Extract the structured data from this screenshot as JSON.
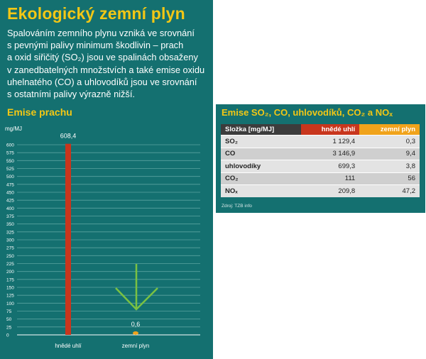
{
  "title": "Ekologický zemní plyn",
  "intro_lines": [
    "Spalováním zemního plynu vzniká ve srovnání",
    "s pevnými palivy minimum škodlivin – prach",
    "a oxid siřičitý (SO₂) jsou ve spalinách obsaženy",
    "v zanedbatelných množstvích a také emise oxidu",
    "uhelnatého (CO) a uhlovodíků jsou ve srovnání",
    "s ostatními palivy výrazně nižší."
  ],
  "colors": {
    "panel": "#147070",
    "accent": "#f3c715",
    "coal": "#c8361d",
    "gas": "#f0a31b",
    "arrow": "#7ac142"
  },
  "chart_data": {
    "type": "bar",
    "title": "Emise prachu",
    "ylabel": "mg/MJ",
    "categories": [
      "hnědé uhlí",
      "zemní plyn"
    ],
    "values": [
      608.4,
      0.6
    ],
    "value_labels": [
      "608,4",
      "0,6"
    ],
    "ylim": [
      0,
      600
    ],
    "yticks": [
      0,
      25,
      50,
      75,
      100,
      125,
      150,
      175,
      200,
      225,
      250,
      275,
      300,
      325,
      350,
      375,
      400,
      425,
      450,
      475,
      500,
      525,
      550,
      575,
      600
    ],
    "grid": true
  },
  "table": {
    "title": "Emise SO₂, CO, uhlovodíků, CO₂ a NOₓ",
    "headers": [
      "Složka [mg/MJ]",
      "hnědé uhlí",
      "zemní plyn"
    ],
    "rows": [
      [
        "SO₂",
        "1 129,4",
        "0,3"
      ],
      [
        "CO",
        "3 146,9",
        "9,4"
      ],
      [
        "uhlovodíky",
        "699,3",
        "3,8"
      ],
      [
        "CO₂",
        "111",
        "56"
      ],
      [
        "NOₓ",
        "209,8",
        "47,2"
      ]
    ],
    "source": "Zdroj: TZB info"
  }
}
